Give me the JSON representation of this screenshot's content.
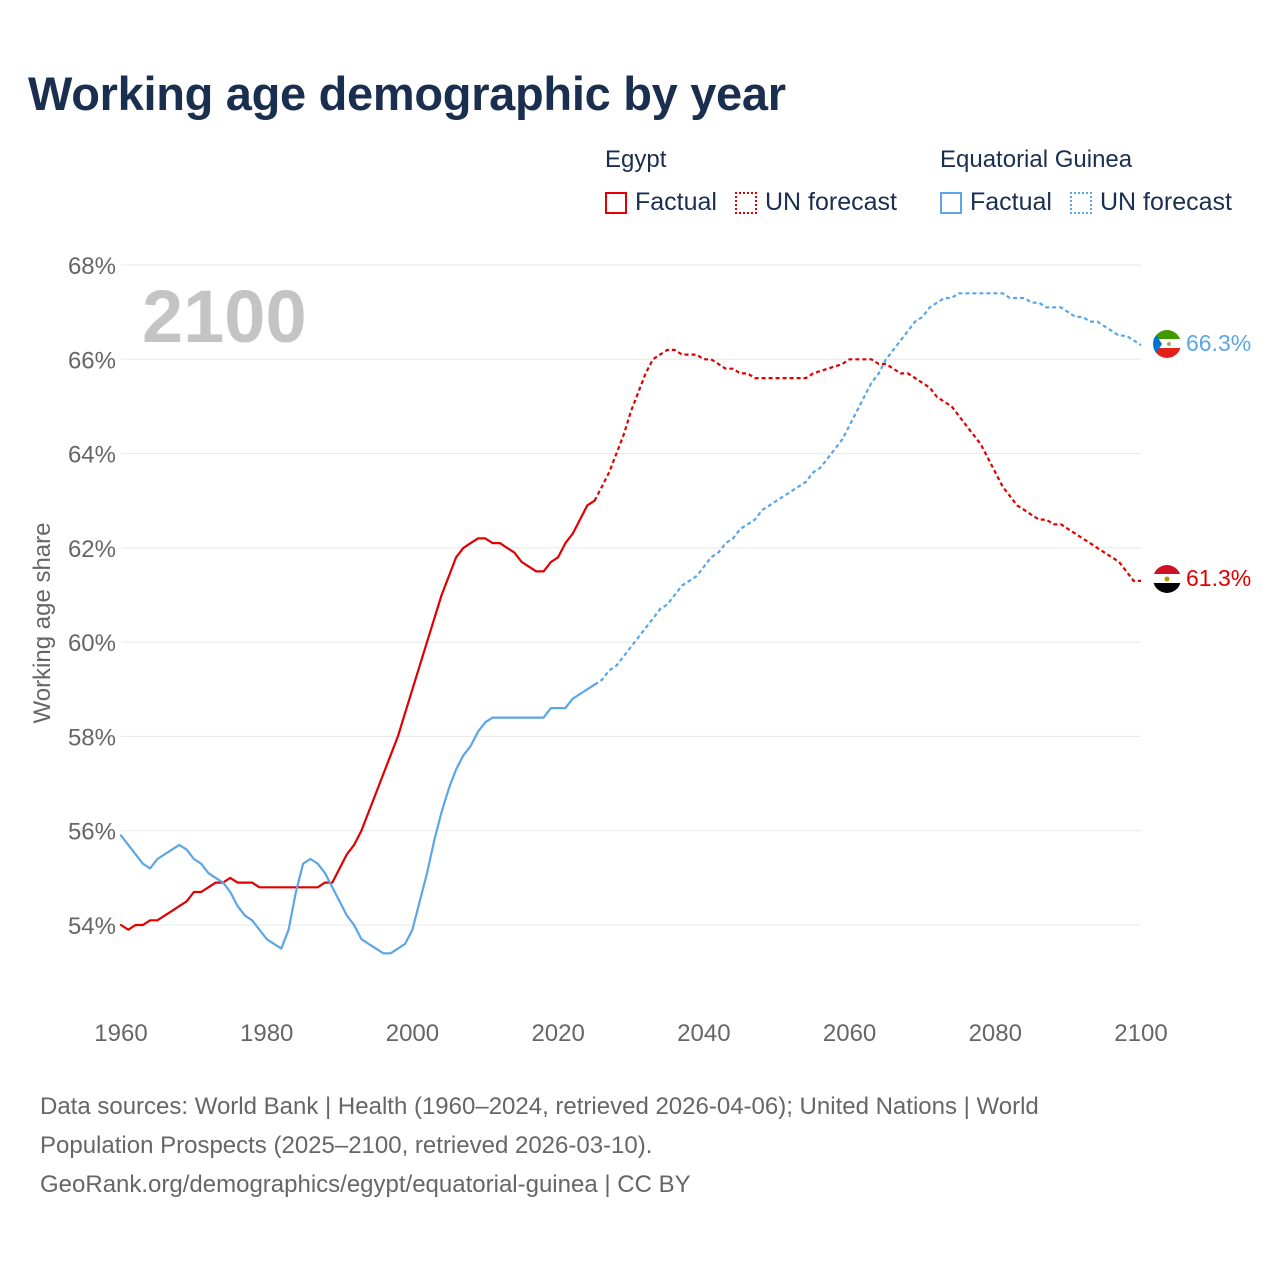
{
  "colors": {
    "egypt": "#e00000",
    "equatorial_guinea": "#5aa6e6",
    "grid": "#e8e8e8",
    "axis_text": "#666666",
    "year_watermark": "#c4c4c4",
    "title": "#1a2e4f"
  },
  "chart_data": {
    "type": "line",
    "title": "Working age demographic by year",
    "xlabel": "",
    "ylabel": "Working age share",
    "xlim": [
      1960,
      2100
    ],
    "ylim": [
      52.5,
      68
    ],
    "x_ticks": [
      1960,
      1980,
      2000,
      2020,
      2040,
      2060,
      2080,
      2100
    ],
    "x_tick_labels": [
      "1960",
      "1980",
      "2000",
      "2020",
      "2040",
      "2060",
      "2080",
      "2100"
    ],
    "y_ticks": [
      54,
      56,
      58,
      60,
      62,
      64,
      66,
      68
    ],
    "y_tick_labels": [
      "54%",
      "56%",
      "58%",
      "60%",
      "62%",
      "64%",
      "66%",
      "68%"
    ],
    "grid": true,
    "year_watermark": "2100",
    "legend": [
      {
        "group": "Egypt",
        "items": [
          "Factual",
          "UN forecast"
        ]
      },
      {
        "group": "Equatorial Guinea",
        "items": [
          "Factual",
          "UN forecast"
        ]
      }
    ],
    "series": [
      {
        "name": "Egypt",
        "end_label": "61.3%",
        "factual": [
          [
            1960,
            54.0
          ],
          [
            1961,
            53.9
          ],
          [
            1962,
            54.0
          ],
          [
            1963,
            54.0
          ],
          [
            1964,
            54.1
          ],
          [
            1965,
            54.1
          ],
          [
            1966,
            54.2
          ],
          [
            1967,
            54.3
          ],
          [
            1968,
            54.4
          ],
          [
            1969,
            54.5
          ],
          [
            1970,
            54.7
          ],
          [
            1971,
            54.7
          ],
          [
            1972,
            54.8
          ],
          [
            1973,
            54.9
          ],
          [
            1974,
            54.9
          ],
          [
            1975,
            55.0
          ],
          [
            1976,
            54.9
          ],
          [
            1977,
            54.9
          ],
          [
            1978,
            54.9
          ],
          [
            1979,
            54.8
          ],
          [
            1980,
            54.8
          ],
          [
            1981,
            54.8
          ],
          [
            1982,
            54.8
          ],
          [
            1983,
            54.8
          ],
          [
            1984,
            54.8
          ],
          [
            1985,
            54.8
          ],
          [
            1986,
            54.8
          ],
          [
            1987,
            54.8
          ],
          [
            1988,
            54.9
          ],
          [
            1989,
            54.9
          ],
          [
            1990,
            55.2
          ],
          [
            1991,
            55.5
          ],
          [
            1992,
            55.7
          ],
          [
            1993,
            56.0
          ],
          [
            1994,
            56.4
          ],
          [
            1995,
            56.8
          ],
          [
            1996,
            57.2
          ],
          [
            1997,
            57.6
          ],
          [
            1998,
            58.0
          ],
          [
            1999,
            58.5
          ],
          [
            2000,
            59.0
          ],
          [
            2001,
            59.5
          ],
          [
            2002,
            60.0
          ],
          [
            2003,
            60.5
          ],
          [
            2004,
            61.0
          ],
          [
            2005,
            61.4
          ],
          [
            2006,
            61.8
          ],
          [
            2007,
            62.0
          ],
          [
            2008,
            62.1
          ],
          [
            2009,
            62.2
          ],
          [
            2010,
            62.2
          ],
          [
            2011,
            62.1
          ],
          [
            2012,
            62.1
          ],
          [
            2013,
            62.0
          ],
          [
            2014,
            61.9
          ],
          [
            2015,
            61.7
          ],
          [
            2016,
            61.6
          ],
          [
            2017,
            61.5
          ],
          [
            2018,
            61.5
          ],
          [
            2019,
            61.7
          ],
          [
            2020,
            61.8
          ],
          [
            2021,
            62.1
          ],
          [
            2022,
            62.3
          ],
          [
            2023,
            62.6
          ],
          [
            2024,
            62.9
          ],
          [
            2025,
            63.0
          ]
        ],
        "forecast": [
          [
            2025,
            63.0
          ],
          [
            2026,
            63.3
          ],
          [
            2027,
            63.6
          ],
          [
            2028,
            64.0
          ],
          [
            2029,
            64.4
          ],
          [
            2030,
            64.9
          ],
          [
            2031,
            65.3
          ],
          [
            2032,
            65.7
          ],
          [
            2033,
            66.0
          ],
          [
            2034,
            66.1
          ],
          [
            2035,
            66.2
          ],
          [
            2036,
            66.2
          ],
          [
            2037,
            66.1
          ],
          [
            2038,
            66.1
          ],
          [
            2039,
            66.1
          ],
          [
            2040,
            66.0
          ],
          [
            2041,
            66.0
          ],
          [
            2042,
            65.9
          ],
          [
            2043,
            65.8
          ],
          [
            2044,
            65.8
          ],
          [
            2045,
            65.7
          ],
          [
            2046,
            65.7
          ],
          [
            2047,
            65.6
          ],
          [
            2048,
            65.6
          ],
          [
            2049,
            65.6
          ],
          [
            2050,
            65.6
          ],
          [
            2052,
            65.6
          ],
          [
            2054,
            65.6
          ],
          [
            2055,
            65.7
          ],
          [
            2057,
            65.8
          ],
          [
            2059,
            65.9
          ],
          [
            2060,
            66.0
          ],
          [
            2061,
            66.0
          ],
          [
            2062,
            66.0
          ],
          [
            2063,
            66.0
          ],
          [
            2064,
            65.9
          ],
          [
            2065,
            65.9
          ],
          [
            2066,
            65.8
          ],
          [
            2067,
            65.7
          ],
          [
            2068,
            65.7
          ],
          [
            2069,
            65.6
          ],
          [
            2070,
            65.5
          ],
          [
            2071,
            65.4
          ],
          [
            2072,
            65.2
          ],
          [
            2073,
            65.1
          ],
          [
            2074,
            65.0
          ],
          [
            2075,
            64.8
          ],
          [
            2076,
            64.6
          ],
          [
            2077,
            64.4
          ],
          [
            2078,
            64.2
          ],
          [
            2079,
            63.9
          ],
          [
            2080,
            63.6
          ],
          [
            2081,
            63.3
          ],
          [
            2082,
            63.1
          ],
          [
            2083,
            62.9
          ],
          [
            2084,
            62.8
          ],
          [
            2085,
            62.7
          ],
          [
            2086,
            62.6
          ],
          [
            2087,
            62.6
          ],
          [
            2088,
            62.5
          ],
          [
            2089,
            62.5
          ],
          [
            2090,
            62.4
          ],
          [
            2091,
            62.3
          ],
          [
            2092,
            62.2
          ],
          [
            2093,
            62.1
          ],
          [
            2094,
            62.0
          ],
          [
            2095,
            61.9
          ],
          [
            2096,
            61.8
          ],
          [
            2097,
            61.7
          ],
          [
            2098,
            61.5
          ],
          [
            2099,
            61.3
          ],
          [
            2100,
            61.3
          ]
        ]
      },
      {
        "name": "Equatorial Guinea",
        "end_label": "66.3%",
        "factual": [
          [
            1960,
            55.9
          ],
          [
            1961,
            55.7
          ],
          [
            1962,
            55.5
          ],
          [
            1963,
            55.3
          ],
          [
            1964,
            55.2
          ],
          [
            1965,
            55.4
          ],
          [
            1966,
            55.5
          ],
          [
            1967,
            55.6
          ],
          [
            1968,
            55.7
          ],
          [
            1969,
            55.6
          ],
          [
            1970,
            55.4
          ],
          [
            1971,
            55.3
          ],
          [
            1972,
            55.1
          ],
          [
            1973,
            55.0
          ],
          [
            1974,
            54.9
          ],
          [
            1975,
            54.7
          ],
          [
            1976,
            54.4
          ],
          [
            1977,
            54.2
          ],
          [
            1978,
            54.1
          ],
          [
            1979,
            53.9
          ],
          [
            1980,
            53.7
          ],
          [
            1981,
            53.6
          ],
          [
            1982,
            53.5
          ],
          [
            1983,
            53.9
          ],
          [
            1984,
            54.7
          ],
          [
            1985,
            55.3
          ],
          [
            1986,
            55.4
          ],
          [
            1987,
            55.3
          ],
          [
            1988,
            55.1
          ],
          [
            1989,
            54.8
          ],
          [
            1990,
            54.5
          ],
          [
            1991,
            54.2
          ],
          [
            1992,
            54.0
          ],
          [
            1993,
            53.7
          ],
          [
            1994,
            53.6
          ],
          [
            1995,
            53.5
          ],
          [
            1996,
            53.4
          ],
          [
            1997,
            53.4
          ],
          [
            1998,
            53.5
          ],
          [
            1999,
            53.6
          ],
          [
            2000,
            53.9
          ],
          [
            2001,
            54.5
          ],
          [
            2002,
            55.1
          ],
          [
            2003,
            55.8
          ],
          [
            2004,
            56.4
          ],
          [
            2005,
            56.9
          ],
          [
            2006,
            57.3
          ],
          [
            2007,
            57.6
          ],
          [
            2008,
            57.8
          ],
          [
            2009,
            58.1
          ],
          [
            2010,
            58.3
          ],
          [
            2011,
            58.4
          ],
          [
            2012,
            58.4
          ],
          [
            2013,
            58.4
          ],
          [
            2014,
            58.4
          ],
          [
            2015,
            58.4
          ],
          [
            2016,
            58.4
          ],
          [
            2017,
            58.4
          ],
          [
            2018,
            58.4
          ],
          [
            2019,
            58.6
          ],
          [
            2020,
            58.6
          ],
          [
            2021,
            58.6
          ],
          [
            2022,
            58.8
          ],
          [
            2023,
            58.9
          ],
          [
            2024,
            59.0
          ],
          [
            2025,
            59.1
          ]
        ],
        "forecast": [
          [
            2025,
            59.1
          ],
          [
            2026,
            59.2
          ],
          [
            2027,
            59.4
          ],
          [
            2028,
            59.5
          ],
          [
            2029,
            59.7
          ],
          [
            2030,
            59.9
          ],
          [
            2031,
            60.1
          ],
          [
            2032,
            60.3
          ],
          [
            2033,
            60.5
          ],
          [
            2034,
            60.7
          ],
          [
            2035,
            60.8
          ],
          [
            2036,
            61.0
          ],
          [
            2037,
            61.2
          ],
          [
            2038,
            61.3
          ],
          [
            2039,
            61.4
          ],
          [
            2040,
            61.6
          ],
          [
            2041,
            61.8
          ],
          [
            2042,
            61.9
          ],
          [
            2043,
            62.1
          ],
          [
            2044,
            62.2
          ],
          [
            2045,
            62.4
          ],
          [
            2046,
            62.5
          ],
          [
            2047,
            62.6
          ],
          [
            2048,
            62.8
          ],
          [
            2049,
            62.9
          ],
          [
            2050,
            63.0
          ],
          [
            2051,
            63.1
          ],
          [
            2052,
            63.2
          ],
          [
            2053,
            63.3
          ],
          [
            2054,
            63.4
          ],
          [
            2055,
            63.6
          ],
          [
            2056,
            63.7
          ],
          [
            2057,
            63.9
          ],
          [
            2058,
            64.1
          ],
          [
            2059,
            64.3
          ],
          [
            2060,
            64.6
          ],
          [
            2061,
            64.9
          ],
          [
            2062,
            65.2
          ],
          [
            2063,
            65.5
          ],
          [
            2064,
            65.7
          ],
          [
            2065,
            66.0
          ],
          [
            2066,
            66.2
          ],
          [
            2067,
            66.4
          ],
          [
            2068,
            66.6
          ],
          [
            2069,
            66.8
          ],
          [
            2070,
            66.9
          ],
          [
            2071,
            67.1
          ],
          [
            2072,
            67.2
          ],
          [
            2073,
            67.3
          ],
          [
            2074,
            67.3
          ],
          [
            2075,
            67.4
          ],
          [
            2076,
            67.4
          ],
          [
            2077,
            67.4
          ],
          [
            2078,
            67.4
          ],
          [
            2079,
            67.4
          ],
          [
            2080,
            67.4
          ],
          [
            2081,
            67.4
          ],
          [
            2082,
            67.3
          ],
          [
            2083,
            67.3
          ],
          [
            2084,
            67.3
          ],
          [
            2085,
            67.2
          ],
          [
            2086,
            67.2
          ],
          [
            2087,
            67.1
          ],
          [
            2088,
            67.1
          ],
          [
            2089,
            67.1
          ],
          [
            2090,
            67.0
          ],
          [
            2091,
            66.9
          ],
          [
            2092,
            66.9
          ],
          [
            2093,
            66.8
          ],
          [
            2094,
            66.8
          ],
          [
            2095,
            66.7
          ],
          [
            2096,
            66.6
          ],
          [
            2097,
            66.5
          ],
          [
            2098,
            66.5
          ],
          [
            2099,
            66.4
          ],
          [
            2100,
            66.3
          ]
        ]
      }
    ]
  },
  "footer": {
    "line1": "Data sources: World Bank | Health (1960–2024, retrieved 2026-04-06); United Nations | World",
    "line2": "Population Prospects (2025–2100, retrieved 2026-03-10).",
    "line3": "GeoRank.org/demographics/egypt/equatorial-guinea | CC BY"
  }
}
